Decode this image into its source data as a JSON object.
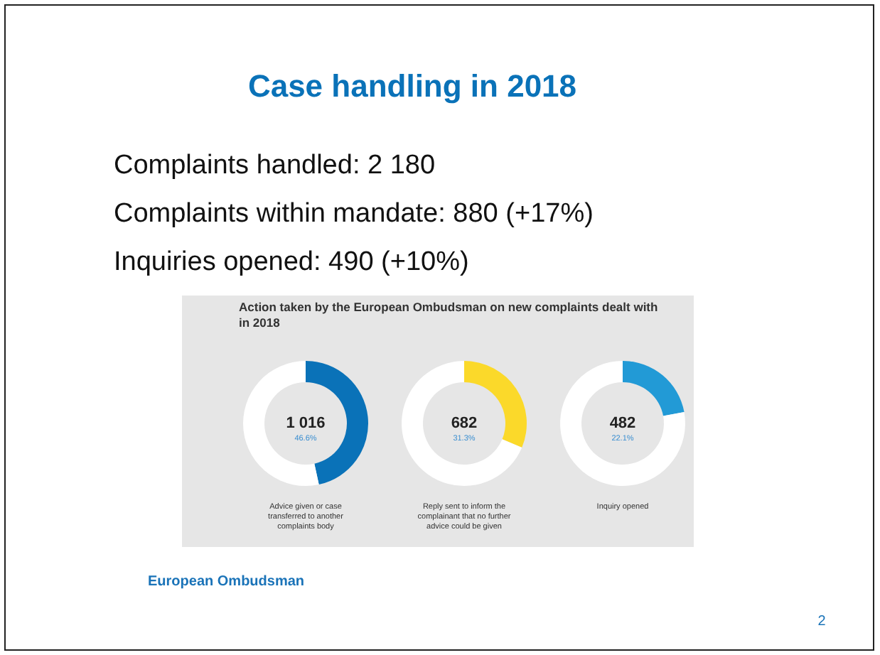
{
  "chart_data": [
    {
      "type": "other",
      "title": "Case handling in 2018",
      "annotations": [
        "Complaints handled: 2 180",
        "Complaints within mandate: 880 (+17%)",
        "Inquiries opened: 490 (+10%)",
        "Action taken by the European Ombudsman on new complaints dealt with in 2018",
        "European Ombudsman",
        "2"
      ]
    },
    {
      "type": "donut",
      "title": "Advice given or case transferred to another complaints body",
      "categories": [
        null,
        null
      ],
      "values": [
        46.6,
        53.4
      ],
      "colors": [
        "#0a72b8",
        "#ffffff"
      ],
      "annotations": [
        "1 016",
        "46.6%"
      ]
    },
    {
      "type": "donut",
      "title": "Reply sent to inform the complainant that no further advice could be given",
      "categories": [
        null,
        null
      ],
      "values": [
        31.3,
        68.7
      ],
      "colors": [
        "#fbd92a",
        "#ffffff"
      ],
      "annotations": [
        "682",
        "31.3%"
      ]
    },
    {
      "type": "donut",
      "title": "Inquiry opened",
      "categories": [
        null,
        null
      ],
      "values": [
        22.1,
        77.9
      ],
      "colors": [
        "#229ad6",
        "#ffffff"
      ],
      "annotations": [
        "482",
        "22.1%"
      ]
    }
  ]
}
